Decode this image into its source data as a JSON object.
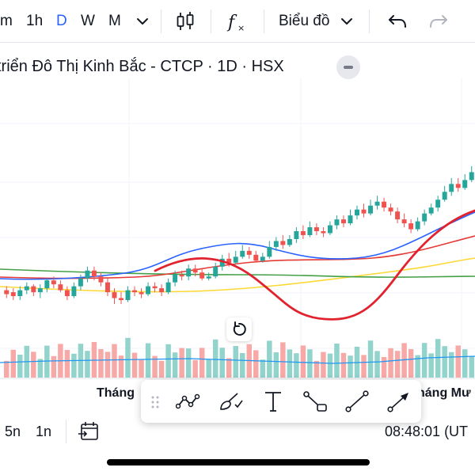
{
  "toolbar": {
    "intervals": [
      {
        "label": "m",
        "active": false
      },
      {
        "label": "1h",
        "active": false
      },
      {
        "label": "D",
        "active": true
      },
      {
        "label": "W",
        "active": false
      },
      {
        "label": "M",
        "active": false
      }
    ],
    "chart_type_label": "Biểu đồ",
    "icons": [
      "chevron-down-icon",
      "candlestick-icon",
      "indicators-fx-icon",
      "undo-icon",
      "redo-icon"
    ]
  },
  "symbol": {
    "title": "triển Đô Thị Kinh Bắc - CTCP · 1D · HSX"
  },
  "time_axis": {
    "labels": [
      "Tháng",
      "háng Mư"
    ]
  },
  "bottom_bar": {
    "ranges": [
      "5n",
      "1n"
    ],
    "clock": "08:48:01 (UT"
  },
  "colors": {
    "up": "#26a69a",
    "down": "#ef5350",
    "volume_up": "#92d3cc",
    "volume_down": "#f7a9a7",
    "ma_blue": "#2962ff",
    "ma_red": "#e53935",
    "ma_green": "#43a047",
    "ma_yellow": "#fdd835",
    "drawing_red": "#e0232e"
  },
  "chart_data": {
    "type": "candlestick",
    "candles": [
      [
        350,
        348,
        352,
        346
      ],
      [
        349,
        347,
        351,
        345
      ],
      [
        347,
        350,
        352,
        345
      ],
      [
        350,
        352,
        354,
        348
      ],
      [
        352,
        349,
        353,
        347
      ],
      [
        349,
        351,
        353,
        346
      ],
      [
        351,
        355,
        356,
        349
      ],
      [
        355,
        353,
        357,
        351
      ],
      [
        353,
        350,
        355,
        349
      ],
      [
        350,
        347,
        352,
        345
      ],
      [
        347,
        352,
        354,
        346
      ],
      [
        352,
        356,
        358,
        350
      ],
      [
        356,
        360,
        362,
        354
      ],
      [
        360,
        357,
        362,
        355
      ],
      [
        357,
        354,
        359,
        352
      ],
      [
        354,
        349,
        356,
        347
      ],
      [
        349,
        346,
        351,
        343
      ],
      [
        346,
        345,
        349,
        343
      ],
      [
        345,
        350,
        352,
        344
      ],
      [
        350,
        349,
        352,
        347
      ],
      [
        349,
        348,
        351,
        346
      ],
      [
        348,
        352,
        354,
        347
      ],
      [
        352,
        351,
        354,
        349
      ],
      [
        351,
        349,
        353,
        347
      ],
      [
        349,
        354,
        356,
        348
      ],
      [
        354,
        358,
        360,
        352
      ],
      [
        358,
        357,
        360,
        355
      ],
      [
        357,
        361,
        363,
        355
      ],
      [
        361,
        359,
        363,
        357
      ],
      [
        359,
        356,
        361,
        355
      ],
      [
        356,
        357,
        359,
        355
      ],
      [
        357,
        362,
        364,
        356
      ],
      [
        362,
        366,
        368,
        360
      ],
      [
        366,
        364,
        369,
        362
      ],
      [
        364,
        367,
        370,
        363
      ],
      [
        367,
        370,
        373,
        366
      ],
      [
        370,
        368,
        372,
        366
      ],
      [
        368,
        365,
        370,
        364
      ],
      [
        365,
        367,
        369,
        364
      ],
      [
        367,
        372,
        375,
        366
      ],
      [
        372,
        375,
        377,
        370
      ],
      [
        375,
        373,
        378,
        371
      ],
      [
        373,
        376,
        378,
        372
      ],
      [
        376,
        380,
        382,
        374
      ],
      [
        380,
        378,
        383,
        376
      ],
      [
        378,
        382,
        385,
        377
      ],
      [
        382,
        380,
        384,
        378
      ],
      [
        380,
        379,
        382,
        377
      ],
      [
        379,
        383,
        385,
        378
      ],
      [
        383,
        386,
        388,
        381
      ],
      [
        386,
        384,
        388,
        382
      ],
      [
        384,
        388,
        391,
        383
      ],
      [
        388,
        391,
        393,
        386
      ],
      [
        391,
        389,
        394,
        387
      ],
      [
        389,
        393,
        396,
        388
      ],
      [
        393,
        395,
        398,
        391
      ],
      [
        395,
        392,
        397,
        390
      ],
      [
        392,
        390,
        394,
        388
      ],
      [
        390,
        386,
        392,
        384
      ],
      [
        386,
        384,
        389,
        382
      ],
      [
        384,
        381,
        386,
        379
      ],
      [
        381,
        385,
        387,
        380
      ],
      [
        385,
        389,
        391,
        383
      ],
      [
        389,
        392,
        394,
        388
      ],
      [
        392,
        396,
        398,
        390
      ],
      [
        396,
        400,
        403,
        395
      ],
      [
        400,
        404,
        407,
        398
      ],
      [
        404,
        402,
        407,
        400
      ],
      [
        402,
        406,
        409,
        401
      ],
      [
        406,
        410,
        413,
        405
      ]
    ]
  }
}
